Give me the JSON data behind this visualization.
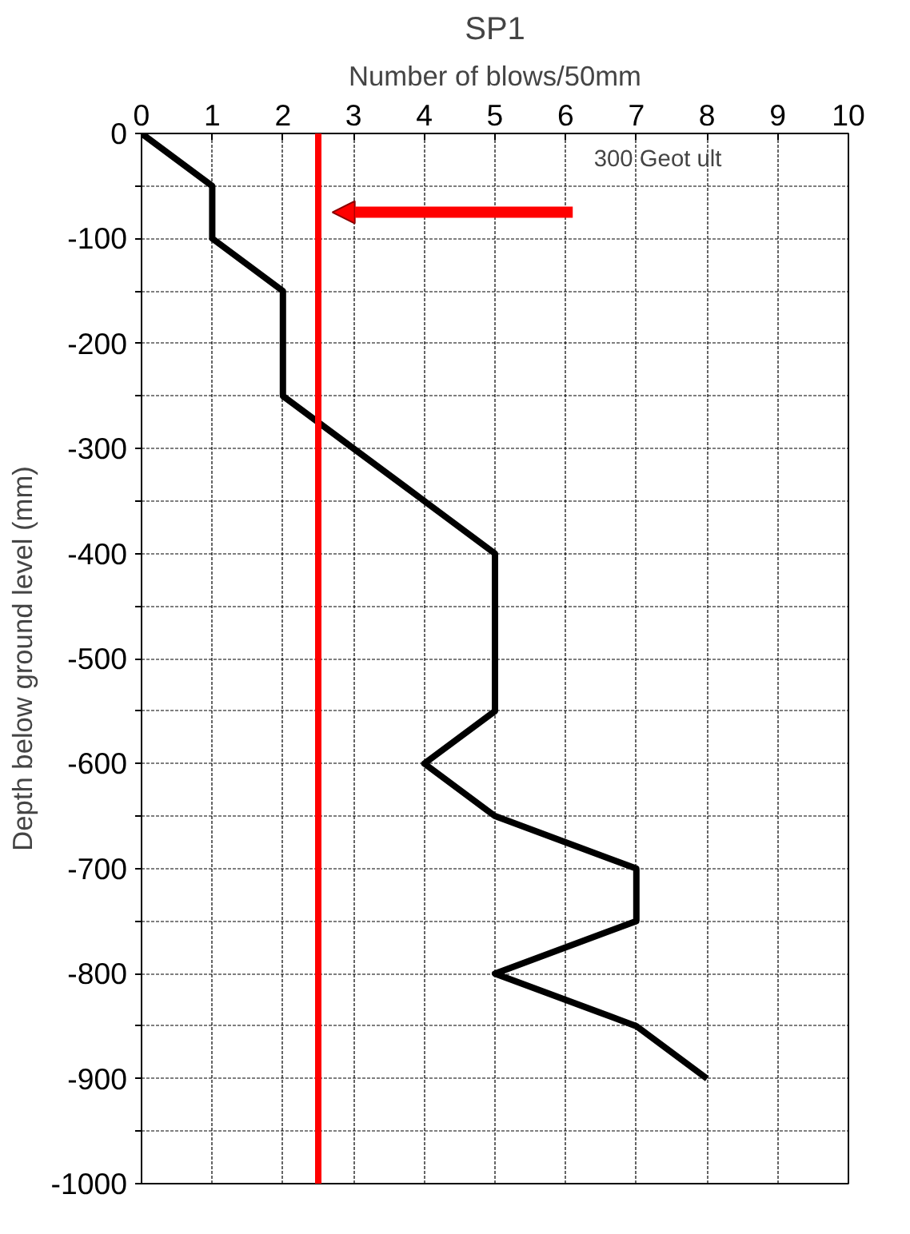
{
  "chart_data": {
    "type": "line",
    "title": "SP1",
    "xlabel": "Number of blows/50mm",
    "ylabel": "Depth below ground level (mm)",
    "x": [
      0,
      1,
      1,
      2,
      2,
      3,
      4,
      5,
      5,
      5,
      5,
      4,
      5,
      7,
      7,
      5,
      7,
      8
    ],
    "series": [
      {
        "color": "#000000",
        "values": [
          0,
          -50,
          -100,
          -150,
          -250,
          -300,
          -350,
          -400,
          -450,
          -500,
          -550,
          -600,
          -650,
          -700,
          -750,
          -800,
          -850,
          -900
        ]
      }
    ],
    "xlim": [
      0,
      10
    ],
    "xticks": [
      0,
      1,
      2,
      3,
      4,
      5,
      6,
      7,
      8,
      9,
      10
    ],
    "ylim": [
      -1000,
      0
    ],
    "yticks": [
      0,
      {
        "value": -50,
        "label": null
      },
      -100,
      {
        "value": -150,
        "label": null
      },
      -200,
      {
        "value": -250,
        "label": null
      },
      -300,
      {
        "value": -350,
        "label": null
      },
      -400,
      {
        "value": -450,
        "label": null
      },
      -500,
      {
        "value": -550,
        "label": null
      },
      -600,
      {
        "value": -650,
        "label": null
      },
      -700,
      {
        "value": -750,
        "label": null
      },
      -800,
      {
        "value": -850,
        "label": null
      },
      -900,
      {
        "value": -950,
        "label": null
      },
      -1000
    ],
    "ref_lines": [
      {
        "axis": "x",
        "value": 2.5,
        "color": "#ff0000"
      }
    ],
    "annotations": [
      "300 Geot ult"
    ],
    "grid": true,
    "line_style": "solid",
    "marker": "none"
  }
}
